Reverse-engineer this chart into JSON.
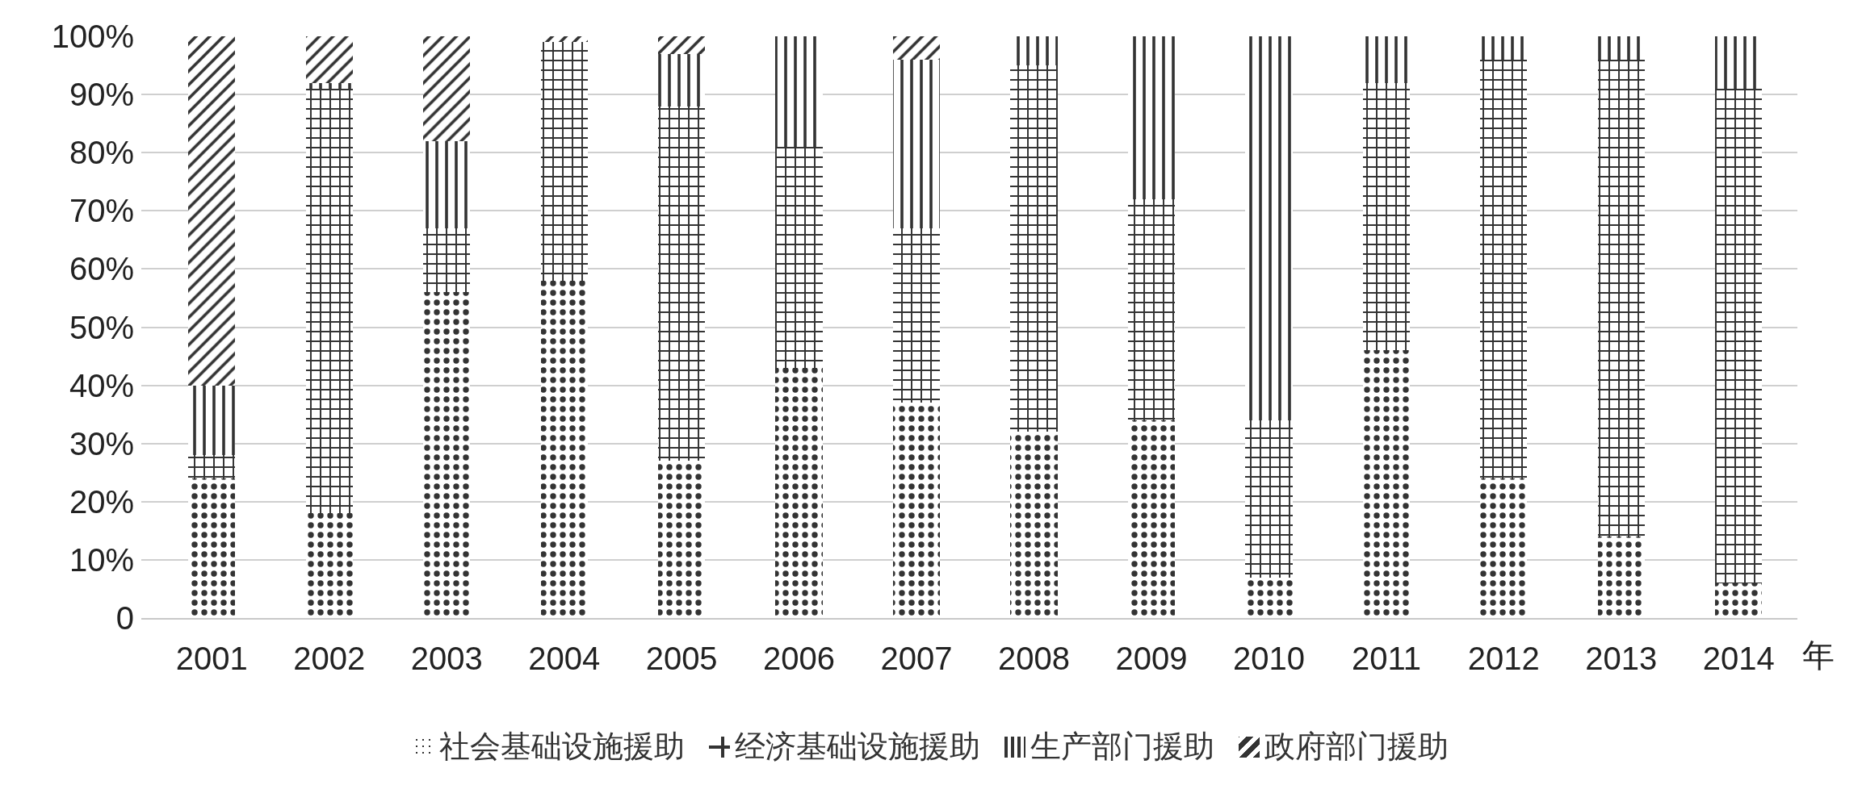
{
  "chart_data": {
    "type": "bar",
    "stacked": true,
    "xlabel": "年",
    "categories": [
      "2001",
      "2002",
      "2003",
      "2004",
      "2005",
      "2006",
      "2007",
      "2008",
      "2009",
      "2010",
      "2011",
      "2012",
      "2013",
      "2014"
    ],
    "series": [
      {
        "name": "社会基础设施援助",
        "color": "#333333",
        "values": [
          24,
          18,
          56,
          58,
          27,
          43,
          37,
          32,
          34,
          7,
          46,
          24,
          14,
          6
        ]
      },
      {
        "name": "经济基础设施援助",
        "color": "#333333",
        "values": [
          4,
          73,
          11,
          41,
          61,
          38,
          30,
          63,
          38,
          27,
          46,
          72,
          82,
          85
        ]
      },
      {
        "name": "生产部门援助",
        "color": "#333333",
        "values": [
          12,
          1,
          15,
          0,
          9,
          19,
          29,
          5,
          28,
          66,
          8,
          4,
          4,
          9
        ]
      },
      {
        "name": "政府部门援助",
        "color": "#333333",
        "values": [
          60,
          8,
          18,
          1,
          3,
          0,
          4,
          0,
          0,
          0,
          0,
          0,
          0,
          0
        ]
      }
    ],
    "ylim": [
      0,
      100
    ],
    "yticks": [
      0,
      {
        "value": 10,
        "label": "10%"
      },
      {
        "value": 20,
        "label": "20%"
      },
      {
        "value": 30,
        "label": "30%"
      },
      {
        "value": 40,
        "label": "40%"
      },
      {
        "value": 50,
        "label": "50%"
      },
      {
        "value": 60,
        "label": "60%"
      },
      {
        "value": 70,
        "label": "70%"
      },
      {
        "value": 80,
        "label": "80%"
      },
      {
        "value": 90,
        "label": "90%"
      },
      {
        "value": 100,
        "label": "100%"
      }
    ],
    "grid": "y",
    "legend": "bottom"
  }
}
